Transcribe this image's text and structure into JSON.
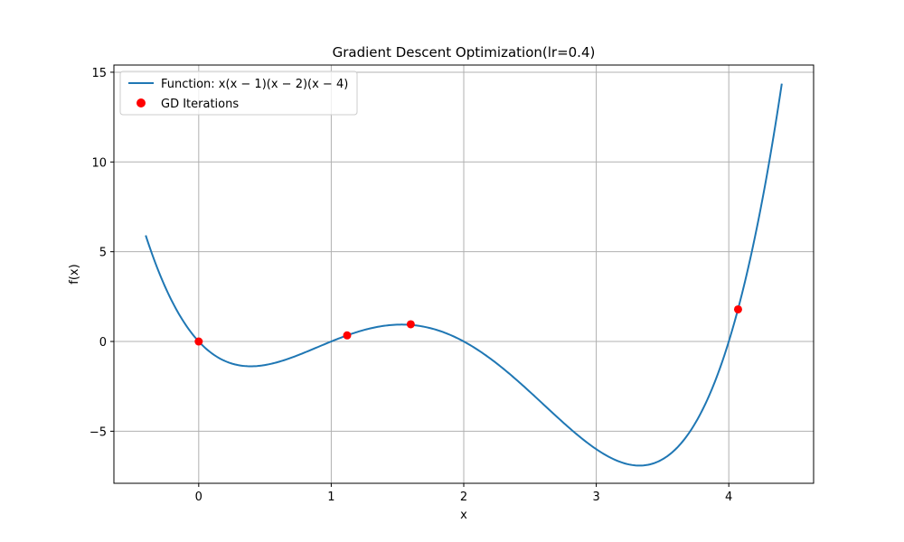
{
  "chart_data": {
    "type": "line",
    "title": "Gradient Descent Optimization(lr=0.4)",
    "xlabel": "x",
    "ylabel": "f(x)",
    "xlim": [
      -0.64,
      4.64
    ],
    "ylim": [
      -7.9,
      15.4
    ],
    "xticks": [
      0,
      1,
      2,
      3,
      4
    ],
    "xtick_labels": [
      "0",
      "1",
      "2",
      "3",
      "4"
    ],
    "yticks": [
      -5,
      0,
      5,
      10,
      15
    ],
    "ytick_labels": [
      "−5",
      "0",
      "5",
      "10",
      "15"
    ],
    "grid": true,
    "legend_position": "top-left",
    "series": [
      {
        "name": "Function: x(x − 1)(x − 2)(x − 4)",
        "type": "line",
        "function": "x*(x-1)*(x-2)*(x-4)",
        "x_range": [
          -0.4,
          4.4
        ],
        "color": "#1f77b4"
      },
      {
        "name": "GD Iterations",
        "type": "scatter",
        "x": [
          4.07,
          1.6,
          1.12,
          0.0
        ],
        "y": [
          1.79,
          0.96,
          0.34,
          0.0
        ],
        "color": "#ff0000"
      }
    ]
  }
}
